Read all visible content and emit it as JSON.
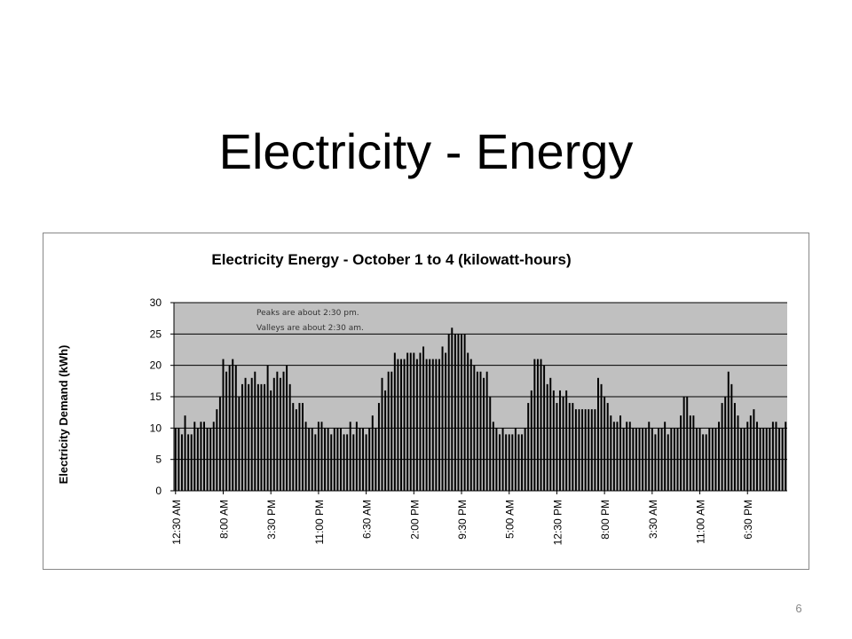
{
  "slide": {
    "title": "Electricity - Energy",
    "page_number": "6"
  },
  "chart_data": {
    "type": "bar",
    "title": "Electricity Energy - October 1 to 4 (kilowatt-hours)",
    "xlabel": "",
    "ylabel": "Electricity Demand (kWh)",
    "ylim": [
      0,
      30
    ],
    "yticks": [
      0,
      5,
      10,
      15,
      20,
      25,
      30
    ],
    "grid": true,
    "plot_background": "#c0c0c0",
    "bar_color": "#000000",
    "annotations": [
      "Peaks are about 2:30 pm.",
      "Valleys  are about 2:30 am."
    ],
    "tick_labels": [
      "12:30 AM",
      "8:00 AM",
      "3:30 PM",
      "11:00 PM",
      "6:30 AM",
      "2:00 PM",
      "9:30 PM",
      "5:00 AM",
      "12:30 PM",
      "8:00 PM",
      "3:30 AM",
      "11:00 AM",
      "6:30 PM"
    ],
    "tick_every": 15,
    "interval": "30 minutes",
    "values": [
      10,
      10,
      9,
      12,
      9,
      9,
      11,
      10,
      11,
      11,
      10,
      10,
      11,
      13,
      15,
      21,
      19,
      20,
      21,
      20,
      15,
      17,
      18,
      17,
      18,
      19,
      17,
      17,
      17,
      20,
      16,
      18,
      19,
      18,
      19,
      20,
      17,
      14,
      13,
      14,
      14,
      11,
      10,
      10,
      9,
      11,
      11,
      10,
      10,
      9,
      10,
      10,
      10,
      9,
      9,
      11,
      9,
      11,
      10,
      10,
      9,
      10,
      12,
      10,
      14,
      18,
      16,
      19,
      19,
      22,
      21,
      21,
      21,
      22,
      22,
      22,
      21,
      22,
      23,
      21,
      21,
      21,
      21,
      21,
      23,
      22,
      25,
      26,
      25,
      25,
      25,
      25,
      22,
      21,
      20,
      19,
      19,
      18,
      19,
      15,
      11,
      10,
      9,
      10,
      9,
      9,
      9,
      10,
      9,
      9,
      10,
      14,
      16,
      21,
      21,
      21,
      20,
      17,
      18,
      16,
      14,
      16,
      15,
      16,
      14,
      14,
      13,
      13,
      13,
      13,
      13,
      13,
      13,
      18,
      17,
      15,
      14,
      12,
      11,
      11,
      12,
      10,
      11,
      11,
      10,
      10,
      10,
      10,
      10,
      11,
      10,
      9,
      10,
      10,
      11,
      9,
      10,
      10,
      10,
      12,
      15,
      15,
      12,
      12,
      10,
      10,
      9,
      9,
      10,
      10,
      10,
      11,
      14,
      15,
      19,
      17,
      14,
      12,
      10,
      10,
      11,
      12,
      13,
      11,
      10,
      10,
      10,
      10,
      11,
      11,
      10,
      10,
      11
    ]
  }
}
